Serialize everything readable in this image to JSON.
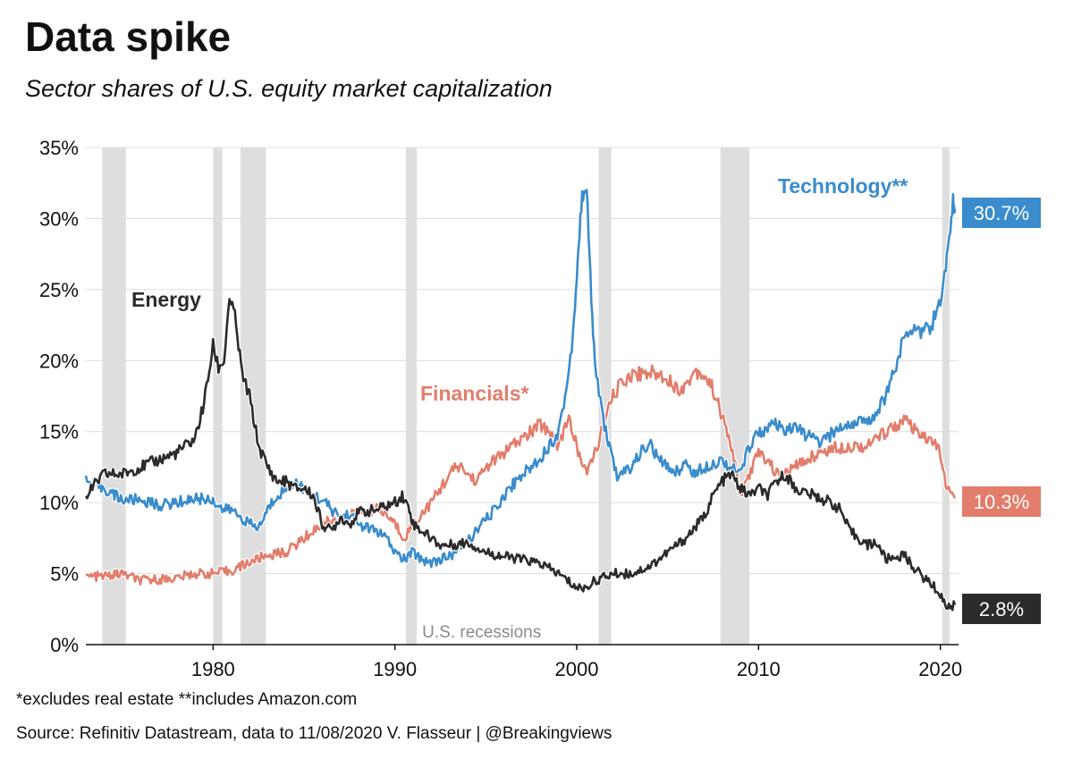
{
  "chart_data": {
    "type": "line",
    "title": "Data spike",
    "subtitle": "Sector shares of U.S. equity market capitalization",
    "xlim": [
      1973,
      2021
    ],
    "ylim": [
      0,
      35
    ],
    "x_ticks": [
      1980,
      1990,
      2000,
      2010,
      2020
    ],
    "x_tick_labels": [
      "1980",
      "1990",
      "2000",
      "2010",
      "2020"
    ],
    "y_ticks": [
      0,
      5,
      10,
      15,
      20,
      25,
      30,
      35
    ],
    "y_tick_labels": [
      "0%",
      "5%",
      "10%",
      "15%",
      "20%",
      "25%",
      "30%",
      "35%"
    ],
    "grid": "horizontal",
    "recessions_label": "U.S. recessions",
    "recessions": [
      [
        1973.9,
        1975.2
      ],
      [
        1980.0,
        1980.5
      ],
      [
        1981.5,
        1982.9
      ],
      [
        1990.6,
        1991.2
      ],
      [
        2001.2,
        2001.9
      ],
      [
        2007.9,
        2009.5
      ],
      [
        2020.1,
        2020.5
      ]
    ],
    "series": [
      {
        "name": "Technology**",
        "color": "#3a8ccc",
        "end_label": "30.7%",
        "points": [
          [
            1973,
            11.5
          ],
          [
            1974,
            11
          ],
          [
            1975,
            10.2
          ],
          [
            1976,
            10.2
          ],
          [
            1977,
            9.8
          ],
          [
            1978,
            10
          ],
          [
            1979,
            10.3
          ],
          [
            1980,
            10.2
          ],
          [
            1980.5,
            9.5
          ],
          [
            1981,
            9.5
          ],
          [
            1981.5,
            9
          ],
          [
            1982,
            8.5
          ],
          [
            1982.5,
            8.2
          ],
          [
            1983,
            9.5
          ],
          [
            1983.5,
            10.5
          ],
          [
            1984,
            11
          ],
          [
            1984.5,
            11.5
          ],
          [
            1985,
            11
          ],
          [
            1985.5,
            10.5
          ],
          [
            1986,
            10.2
          ],
          [
            1986.5,
            9.5
          ],
          [
            1987,
            9
          ],
          [
            1987.5,
            9.2
          ],
          [
            1988,
            8.5
          ],
          [
            1988.5,
            8.2
          ],
          [
            1989,
            8
          ],
          [
            1989.5,
            7.5
          ],
          [
            1990,
            6.5
          ],
          [
            1990.5,
            6
          ],
          [
            1991,
            6.5
          ],
          [
            1991.5,
            6
          ],
          [
            1992,
            5.8
          ],
          [
            1992.5,
            6
          ],
          [
            1993,
            6.2
          ],
          [
            1993.5,
            6.8
          ],
          [
            1994,
            7.3
          ],
          [
            1994.5,
            8
          ],
          [
            1995,
            8.8
          ],
          [
            1995.5,
            9.5
          ],
          [
            1996,
            10.5
          ],
          [
            1996.5,
            11.3
          ],
          [
            1997,
            12
          ],
          [
            1997.5,
            12.5
          ],
          [
            1998,
            13.2
          ],
          [
            1998.5,
            14
          ],
          [
            1999,
            15
          ],
          [
            1999.5,
            18.5
          ],
          [
            1999.8,
            22
          ],
          [
            2000,
            26
          ],
          [
            2000.2,
            30
          ],
          [
            2000.4,
            32.5
          ],
          [
            2000.6,
            31
          ],
          [
            2000.8,
            24
          ],
          [
            2001,
            20
          ],
          [
            2001.3,
            17
          ],
          [
            2001.6,
            15
          ],
          [
            2002,
            13
          ],
          [
            2002.3,
            11.5
          ],
          [
            2002.6,
            12.2
          ],
          [
            2003,
            12.5
          ],
          [
            2003.5,
            13.5
          ],
          [
            2004,
            14.2
          ],
          [
            2004.5,
            13
          ],
          [
            2005,
            12.5
          ],
          [
            2005.5,
            12.2
          ],
          [
            2006,
            12.8
          ],
          [
            2006.5,
            12
          ],
          [
            2007,
            12.5
          ],
          [
            2007.5,
            12.8
          ],
          [
            2008,
            13
          ],
          [
            2008.5,
            12.5
          ],
          [
            2009,
            12
          ],
          [
            2009.5,
            14
          ],
          [
            2010,
            15
          ],
          [
            2010.5,
            15.2
          ],
          [
            2011,
            15.5
          ],
          [
            2011.5,
            14.8
          ],
          [
            2012,
            15.5
          ],
          [
            2012.5,
            14.8
          ],
          [
            2013,
            14.5
          ],
          [
            2013.5,
            14.2
          ],
          [
            2014,
            14.8
          ],
          [
            2014.5,
            15.3
          ],
          [
            2015,
            15.5
          ],
          [
            2015.5,
            15.8
          ],
          [
            2016,
            15.5
          ],
          [
            2016.5,
            16.5
          ],
          [
            2017,
            17.5
          ],
          [
            2017.5,
            19.5
          ],
          [
            2018,
            21.5
          ],
          [
            2018.5,
            22.5
          ],
          [
            2019,
            22
          ],
          [
            2019.5,
            22.5
          ],
          [
            2020,
            24
          ],
          [
            2020.3,
            26.5
          ],
          [
            2020.5,
            29
          ],
          [
            2020.7,
            31.2
          ],
          [
            2020.8,
            30.7
          ]
        ]
      },
      {
        "name": "Financials*",
        "color": "#e27d6c",
        "end_label": "10.3%",
        "points": [
          [
            1973,
            4.8
          ],
          [
            1974,
            4.8
          ],
          [
            1975,
            5
          ],
          [
            1976,
            4.5
          ],
          [
            1977,
            4.6
          ],
          [
            1978,
            4.7
          ],
          [
            1979,
            5
          ],
          [
            1980,
            5
          ],
          [
            1981,
            5.2
          ],
          [
            1982,
            5.8
          ],
          [
            1983,
            6.3
          ],
          [
            1984,
            6.5
          ],
          [
            1985,
            7.5
          ],
          [
            1986,
            8.5
          ],
          [
            1987,
            9
          ],
          [
            1988,
            9.2
          ],
          [
            1989,
            9.5
          ],
          [
            1989.5,
            9.2
          ],
          [
            1990,
            8.5
          ],
          [
            1990.5,
            7.5
          ],
          [
            1991,
            8.5
          ],
          [
            1992,
            10
          ],
          [
            1993,
            12
          ],
          [
            1993.5,
            12.6
          ],
          [
            1994,
            12
          ],
          [
            1994.5,
            11.5
          ],
          [
            1995,
            12.5
          ],
          [
            1996,
            13.5
          ],
          [
            1997,
            14.5
          ],
          [
            1998,
            15.5
          ],
          [
            1998.5,
            15
          ],
          [
            1999,
            14
          ],
          [
            1999.5,
            16
          ],
          [
            2000,
            14
          ],
          [
            2000.5,
            12
          ],
          [
            2001,
            13.5
          ],
          [
            2001.5,
            15.5
          ],
          [
            2002,
            17.5
          ],
          [
            2002.5,
            18.5
          ],
          [
            2003,
            19
          ],
          [
            2004,
            19.2
          ],
          [
            2005,
            18.8
          ],
          [
            2005.5,
            18
          ],
          [
            2006,
            18.2
          ],
          [
            2006.5,
            19.3
          ],
          [
            2007,
            19
          ],
          [
            2007.5,
            18
          ],
          [
            2008,
            16
          ],
          [
            2008.5,
            14
          ],
          [
            2009,
            10.5
          ],
          [
            2009.5,
            12
          ],
          [
            2010,
            13.5
          ],
          [
            2010.5,
            13
          ],
          [
            2011,
            12
          ],
          [
            2011.5,
            12
          ],
          [
            2012,
            12.5
          ],
          [
            2013,
            13.3
          ],
          [
            2014,
            13.8
          ],
          [
            2015,
            14
          ],
          [
            2016,
            14
          ],
          [
            2016.5,
            14.5
          ],
          [
            2017,
            15
          ],
          [
            2018,
            15.8
          ],
          [
            2018.5,
            15.2
          ],
          [
            2019,
            14.5
          ],
          [
            2019.5,
            14.5
          ],
          [
            2020,
            13.5
          ],
          [
            2020.3,
            11
          ],
          [
            2020.8,
            10.3
          ]
        ]
      },
      {
        "name": "Energy",
        "color": "#2b2b2b",
        "end_label": "2.8%",
        "points": [
          [
            1973,
            10.5
          ],
          [
            1974,
            12
          ],
          [
            1975,
            12
          ],
          [
            1976,
            12.5
          ],
          [
            1977,
            13
          ],
          [
            1978,
            13.5
          ],
          [
            1979,
            14.5
          ],
          [
            1979.5,
            17
          ],
          [
            1980,
            21
          ],
          [
            1980.3,
            19.5
          ],
          [
            1980.6,
            20
          ],
          [
            1980.9,
            24.5
          ],
          [
            1981.2,
            23
          ],
          [
            1981.6,
            19
          ],
          [
            1982,
            17.5
          ],
          [
            1982.5,
            14
          ],
          [
            1983,
            12.5
          ],
          [
            1983.5,
            11.5
          ],
          [
            1984,
            11.5
          ],
          [
            1984.5,
            11
          ],
          [
            1985,
            11
          ],
          [
            1985.5,
            10.5
          ],
          [
            1986,
            8.5
          ],
          [
            1986.5,
            8
          ],
          [
            1987,
            9
          ],
          [
            1987.5,
            8.5
          ],
          [
            1988,
            9.3
          ],
          [
            1989,
            9.5
          ],
          [
            1990,
            10
          ],
          [
            1990.4,
            10.5
          ],
          [
            1990.8,
            9.5
          ],
          [
            1991,
            8.5
          ],
          [
            1992,
            7.5
          ],
          [
            1992.5,
            7
          ],
          [
            1993,
            7
          ],
          [
            1994,
            7.2
          ],
          [
            1995,
            6.5
          ],
          [
            1996,
            6.2
          ],
          [
            1997,
            6
          ],
          [
            1998,
            5.7
          ],
          [
            1999,
            5
          ],
          [
            1999.5,
            4.5
          ],
          [
            2000,
            4
          ],
          [
            2000.5,
            4
          ],
          [
            2001,
            4.5
          ],
          [
            2002,
            5
          ],
          [
            2003,
            5
          ],
          [
            2004,
            5.5
          ],
          [
            2005,
            6.5
          ],
          [
            2006,
            7.5
          ],
          [
            2007,
            9
          ],
          [
            2007.5,
            10.5
          ],
          [
            2008,
            11.5
          ],
          [
            2008.5,
            12
          ],
          [
            2009,
            11
          ],
          [
            2009.5,
            10.5
          ],
          [
            2010,
            11
          ],
          [
            2010.5,
            10.5
          ],
          [
            2011,
            11.5
          ],
          [
            2011.5,
            12
          ],
          [
            2012,
            11
          ],
          [
            2013,
            10.5
          ],
          [
            2014,
            10
          ],
          [
            2014.5,
            9.5
          ],
          [
            2015,
            8
          ],
          [
            2016,
            7
          ],
          [
            2016.5,
            7.2
          ],
          [
            2017,
            6
          ],
          [
            2018,
            6.3
          ],
          [
            2018.5,
            5.5
          ],
          [
            2019,
            4.8
          ],
          [
            2019.5,
            4.3
          ],
          [
            2020,
            3.5
          ],
          [
            2020.4,
            2.6
          ],
          [
            2020.8,
            2.8
          ]
        ]
      }
    ],
    "annotations": [
      {
        "text": "Technology**",
        "series": "Technology**"
      },
      {
        "text": "Financials*",
        "series": "Financials*"
      },
      {
        "text": "Energy",
        "series": "Energy"
      }
    ]
  },
  "footnote": "*excludes real estate **includes Amazon.com",
  "source": "Source: Refinitiv Datastream, data to 11/08/2020 V. Flasseur | @Breakingviews"
}
